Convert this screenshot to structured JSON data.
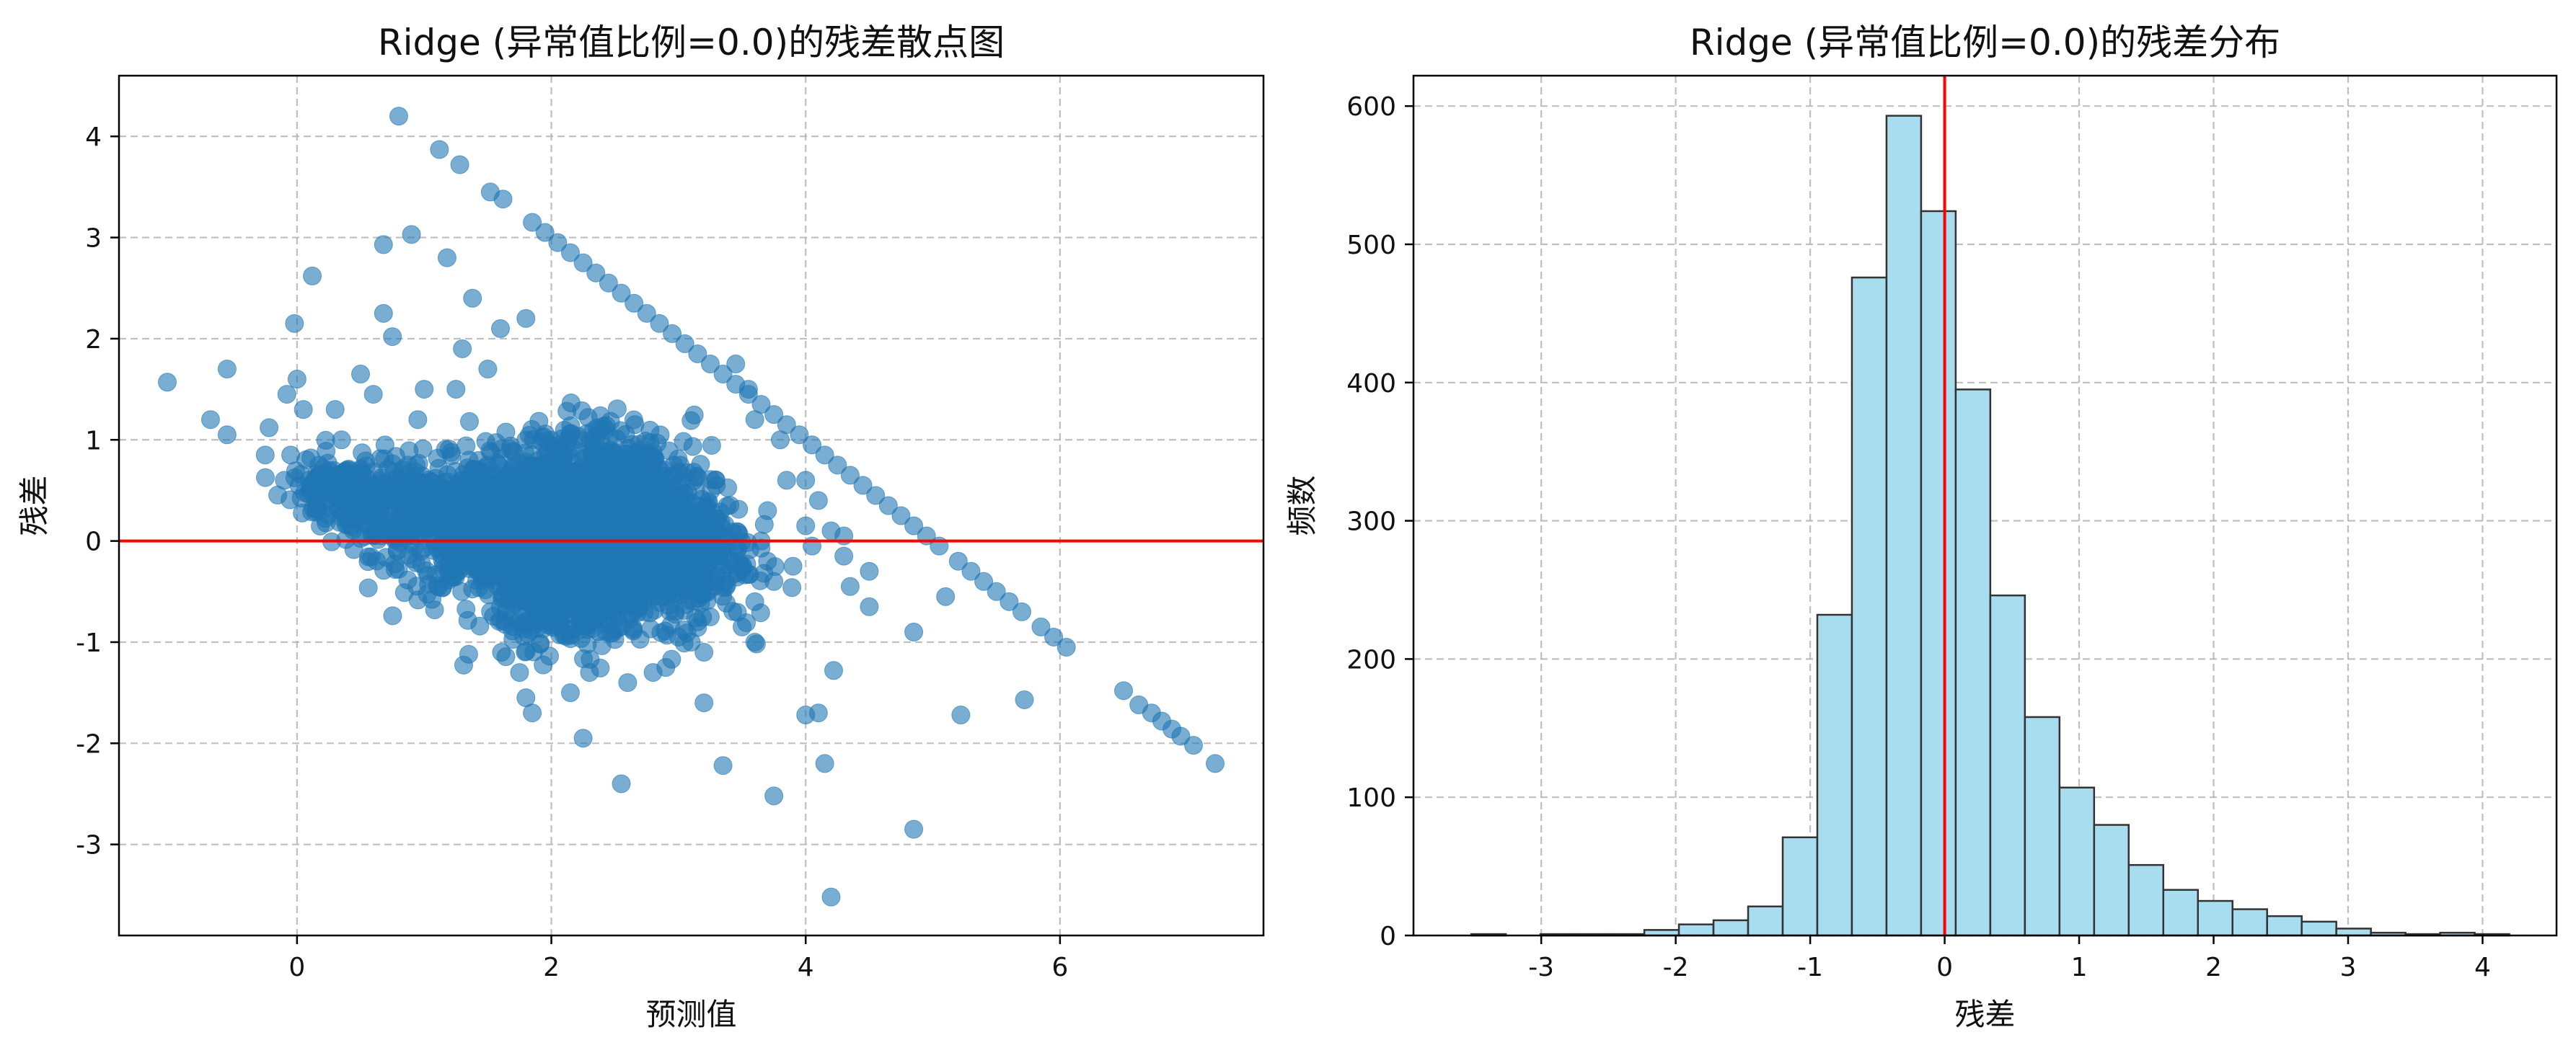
{
  "chart_data": [
    {
      "type": "scatter",
      "title": "Ridge (异常值比例=0.0)的残差散点图",
      "xlabel": "预测值",
      "ylabel": "残差",
      "xlim": [
        -1.4,
        7.6
      ],
      "ylim": [
        -3.9,
        4.6
      ],
      "xticks": [
        {
          "value": 0,
          "label": "0"
        },
        {
          "value": 2,
          "label": "2"
        },
        {
          "value": 4,
          "label": "4"
        },
        {
          "value": 6,
          "label": "6"
        }
      ],
      "yticks": [
        {
          "value": -3,
          "label": "-3"
        },
        {
          "value": -2,
          "label": "-2"
        },
        {
          "value": -1,
          "label": "-1"
        },
        {
          "value": 0,
          "label": "0"
        },
        {
          "value": 1,
          "label": "1"
        },
        {
          "value": 2,
          "label": "2"
        },
        {
          "value": 3,
          "label": "3"
        },
        {
          "value": 4,
          "label": "4"
        }
      ],
      "grid": true,
      "point_color": "#1f77b4",
      "point_alpha": 0.6,
      "reference_line": {
        "y": 0,
        "color": "#ff0000"
      },
      "points": [
        [
          0.8,
          4.2
        ],
        [
          1.12,
          3.87
        ],
        [
          1.28,
          3.72
        ],
        [
          1.52,
          3.45
        ],
        [
          1.62,
          3.38
        ],
        [
          0.9,
          3.03
        ],
        [
          0.68,
          2.93
        ],
        [
          1.18,
          2.8
        ],
        [
          0.12,
          2.62
        ],
        [
          0.68,
          2.25
        ],
        [
          -0.02,
          2.15
        ],
        [
          0.75,
          2.02
        ],
        [
          1.38,
          2.4
        ],
        [
          -0.55,
          1.7
        ],
        [
          -1.02,
          1.57
        ],
        [
          0.0,
          1.6
        ],
        [
          0.5,
          1.65
        ],
        [
          -0.68,
          1.2
        ],
        [
          -0.55,
          1.05
        ],
        [
          -0.22,
          1.12
        ],
        [
          -0.08,
          1.45
        ],
        [
          0.05,
          1.3
        ],
        [
          0.3,
          1.3
        ],
        [
          0.6,
          1.45
        ],
        [
          1.0,
          1.5
        ],
        [
          1.25,
          1.5
        ],
        [
          1.5,
          1.7
        ],
        [
          -0.25,
          0.85
        ],
        [
          -0.05,
          0.85
        ],
        [
          -0.1,
          0.6
        ],
        [
          0.2,
          0.6
        ],
        [
          0.15,
          0.32
        ],
        [
          1.3,
          1.9
        ],
        [
          1.6,
          2.1
        ],
        [
          1.8,
          2.2
        ],
        [
          0.95,
          1.2
        ],
        [
          0.35,
          1.0
        ],
        [
          0.5,
          0.7
        ],
        [
          0.8,
          0.5
        ],
        [
          3.45,
          1.75
        ],
        [
          3.55,
          1.5
        ],
        [
          3.6,
          1.2
        ],
        [
          3.8,
          1.0
        ],
        [
          3.85,
          0.6
        ],
        [
          4.0,
          0.6
        ],
        [
          4.1,
          0.4
        ],
        [
          4.2,
          0.1
        ],
        [
          4.3,
          0.05
        ],
        [
          3.7,
          0.3
        ],
        [
          3.65,
          0.0
        ],
        [
          3.7,
          -0.2
        ],
        [
          3.75,
          -0.4
        ],
        [
          3.9,
          -0.25
        ],
        [
          3.6,
          -0.6
        ],
        [
          3.25,
          -0.75
        ],
        [
          3.5,
          -0.85
        ],
        [
          3.6,
          -1.0
        ],
        [
          3.1,
          -1.0
        ],
        [
          3.2,
          -1.1
        ],
        [
          2.8,
          -1.3
        ],
        [
          2.6,
          -1.4
        ],
        [
          2.15,
          -1.5
        ],
        [
          1.8,
          -1.55
        ],
        [
          1.85,
          -1.7
        ],
        [
          1.75,
          -1.3
        ],
        [
          1.35,
          -1.12
        ],
        [
          2.25,
          -1.95
        ],
        [
          2.55,
          -2.4
        ],
        [
          3.35,
          -2.22
        ],
        [
          3.75,
          -2.52
        ],
        [
          4.15,
          -2.2
        ],
        [
          4.0,
          -1.72
        ],
        [
          4.1,
          -1.7
        ],
        [
          4.22,
          -1.28
        ],
        [
          4.2,
          -3.52
        ],
        [
          4.85,
          -2.85
        ],
        [
          5.22,
          -1.72
        ],
        [
          5.72,
          -1.57
        ],
        [
          4.5,
          -0.65
        ],
        [
          4.85,
          -0.9
        ],
        [
          5.1,
          -0.55
        ],
        [
          3.2,
          -1.6
        ],
        [
          2.9,
          -1.25
        ],
        [
          2.3,
          -1.3
        ],
        [
          4.0,
          0.15
        ],
        [
          4.05,
          -0.05
        ],
        [
          4.3,
          -0.15
        ],
        [
          4.35,
          -0.45
        ],
        [
          4.5,
          -0.3
        ],
        [
          3.0,
          -0.95
        ]
      ],
      "diagonal_points": [
        [
          1.85,
          3.15
        ],
        [
          1.95,
          3.05
        ],
        [
          2.05,
          2.95
        ],
        [
          2.15,
          2.85
        ],
        [
          2.25,
          2.75
        ],
        [
          2.35,
          2.65
        ],
        [
          2.45,
          2.55
        ],
        [
          2.55,
          2.45
        ],
        [
          2.65,
          2.35
        ],
        [
          2.75,
          2.25
        ],
        [
          2.85,
          2.15
        ],
        [
          2.95,
          2.05
        ],
        [
          3.05,
          1.95
        ],
        [
          3.15,
          1.85
        ],
        [
          3.25,
          1.75
        ],
        [
          3.35,
          1.65
        ],
        [
          3.45,
          1.55
        ],
        [
          3.55,
          1.45
        ],
        [
          3.65,
          1.35
        ],
        [
          3.75,
          1.25
        ],
        [
          3.85,
          1.15
        ],
        [
          3.95,
          1.05
        ],
        [
          4.05,
          0.95
        ],
        [
          4.15,
          0.85
        ],
        [
          4.25,
          0.75
        ],
        [
          4.35,
          0.65
        ],
        [
          4.45,
          0.55
        ],
        [
          4.55,
          0.45
        ],
        [
          4.65,
          0.35
        ],
        [
          4.75,
          0.25
        ],
        [
          4.85,
          0.15
        ],
        [
          4.95,
          0.05
        ],
        [
          5.05,
          -0.05
        ],
        [
          5.2,
          -0.2
        ],
        [
          5.3,
          -0.3
        ],
        [
          5.4,
          -0.4
        ],
        [
          5.5,
          -0.5
        ],
        [
          5.6,
          -0.6
        ],
        [
          5.7,
          -0.7
        ],
        [
          5.85,
          -0.85
        ],
        [
          5.95,
          -0.95
        ],
        [
          6.05,
          -1.05
        ],
        [
          6.5,
          -1.48
        ],
        [
          6.62,
          -1.62
        ],
        [
          6.72,
          -1.7
        ],
        [
          6.8,
          -1.78
        ],
        [
          6.88,
          -1.86
        ],
        [
          6.95,
          -1.93
        ],
        [
          7.05,
          -2.02
        ],
        [
          7.22,
          -2.2
        ]
      ],
      "cloud": [
        {
          "cx": 0.9,
          "cy": 0.35,
          "rx": 0.55,
          "ry": 0.4,
          "n": 320
        },
        {
          "cx": 1.5,
          "cy": 0.1,
          "rx": 0.55,
          "ry": 0.55,
          "n": 420
        },
        {
          "cx": 2.1,
          "cy": 0.0,
          "rx": 0.6,
          "ry": 0.65,
          "n": 700
        },
        {
          "cx": 2.6,
          "cy": 0.1,
          "rx": 0.55,
          "ry": 0.7,
          "n": 600
        },
        {
          "cx": 3.0,
          "cy": -0.1,
          "rx": 0.45,
          "ry": 0.6,
          "n": 320
        },
        {
          "cx": 2.3,
          "cy": 0.7,
          "rx": 0.55,
          "ry": 0.45,
          "n": 260
        },
        {
          "cx": 2.2,
          "cy": -0.6,
          "rx": 0.5,
          "ry": 0.35,
          "n": 240
        },
        {
          "cx": 0.3,
          "cy": 0.5,
          "rx": 0.3,
          "ry": 0.25,
          "n": 120
        }
      ]
    },
    {
      "type": "bar",
      "title": "Ridge (异常值比例=0.0)的残差分布",
      "xlabel": "残差",
      "ylabel": "频数",
      "xlim": [
        -3.95,
        4.55
      ],
      "ylim": [
        0,
        622
      ],
      "xticks": [
        {
          "value": -3,
          "label": "-3"
        },
        {
          "value": -2,
          "label": "-2"
        },
        {
          "value": -1,
          "label": "-1"
        },
        {
          "value": 0,
          "label": "0"
        },
        {
          "value": 1,
          "label": "1"
        },
        {
          "value": 2,
          "label": "2"
        },
        {
          "value": 3,
          "label": "3"
        },
        {
          "value": 4,
          "label": "4"
        }
      ],
      "yticks": [
        {
          "value": 0,
          "label": "0"
        },
        {
          "value": 100,
          "label": "100"
        },
        {
          "value": 200,
          "label": "200"
        },
        {
          "value": 300,
          "label": "300"
        },
        {
          "value": 400,
          "label": "400"
        },
        {
          "value": 500,
          "label": "500"
        },
        {
          "value": 600,
          "label": "600"
        }
      ],
      "grid": true,
      "bar_color": "#a8dcef",
      "bar_edge_color": "#333333",
      "reference_line": {
        "x": 0,
        "color": "#ff0000"
      },
      "bin_start": -3.52,
      "bin_width": 0.2573,
      "values": [
        1,
        0,
        1,
        1,
        1,
        4,
        8,
        11,
        21,
        71,
        232,
        476,
        593,
        524,
        395,
        246,
        158,
        107,
        80,
        51,
        33,
        25,
        19,
        14,
        10,
        5,
        2,
        1,
        2,
        1
      ]
    }
  ]
}
